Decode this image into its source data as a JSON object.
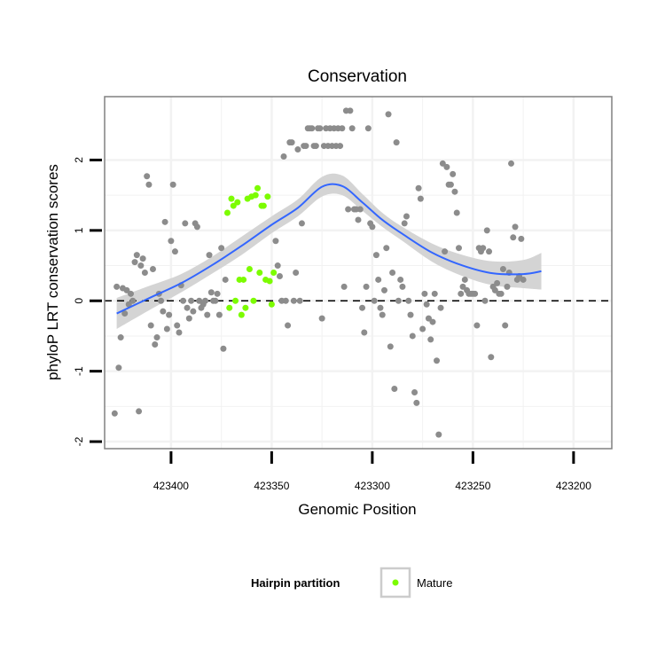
{
  "chart_data": {
    "type": "scatter",
    "title": "Conservation",
    "xlabel": "Genomic Position",
    "ylabel": "phyloP LRT conservation scores",
    "x_reversed": true,
    "xlim": [
      423433,
      423181
    ],
    "ylim": [
      -2.1,
      2.9
    ],
    "x_ticks": [
      423400,
      423350,
      423300,
      423250,
      423200
    ],
    "x_tick_labels": [
      "423400",
      "423350",
      "423300",
      "423250",
      "423200"
    ],
    "y_ticks": [
      -2,
      -1,
      0,
      1,
      2
    ],
    "y_tick_labels": [
      "-2",
      "-1",
      "0",
      "1",
      "2"
    ],
    "grid": true,
    "reference_line": {
      "y": 0,
      "style": "dashed"
    },
    "legend": {
      "title": "Hairpin partition",
      "position": "bottom",
      "entries": [
        {
          "label": "Mature",
          "color": "#7cfc00"
        }
      ]
    },
    "colors": {
      "points_other": "#8c8c8c",
      "points_mature": "#7cfc00",
      "smooth_line": "#3366ff",
      "ribbon": "#d4d4d4",
      "panel_border": "#808080",
      "grid": "#f2f2f2"
    },
    "series": [
      {
        "name": "",
        "color": "#8c8c8c",
        "points": [
          [
            423428,
            -1.6
          ],
          [
            423427,
            0.2
          ],
          [
            423426,
            -0.95
          ],
          [
            423425,
            -0.52
          ],
          [
            423424,
            0.18
          ],
          [
            423423,
            -0.18
          ],
          [
            423422,
            0.15
          ],
          [
            423421,
            -0.05
          ],
          [
            423420,
            0.1
          ],
          [
            423419,
            0.0
          ],
          [
            423418,
            0.55
          ],
          [
            423417,
            0.65
          ],
          [
            423416,
            -1.57
          ],
          [
            423415,
            0.5
          ],
          [
            423414,
            0.6
          ],
          [
            423413,
            0.4
          ],
          [
            423412,
            1.77
          ],
          [
            423411,
            1.65
          ],
          [
            423410,
            -0.35
          ],
          [
            423409,
            0.45
          ],
          [
            423408,
            -0.62
          ],
          [
            423407,
            -0.52
          ],
          [
            423406,
            0.1
          ],
          [
            423405,
            0.0
          ],
          [
            423404,
            -0.15
          ],
          [
            423403,
            1.12
          ],
          [
            423402,
            -0.4
          ],
          [
            423401,
            -0.2
          ],
          [
            423400,
            0.85
          ],
          [
            423399,
            1.65
          ],
          [
            423398,
            0.7
          ],
          [
            423397,
            -0.35
          ],
          [
            423396,
            -0.45
          ],
          [
            423395,
            0.22
          ],
          [
            423394,
            0.0
          ],
          [
            423393,
            1.1
          ],
          [
            423392,
            -0.1
          ],
          [
            423391,
            -0.25
          ],
          [
            423390,
            0.0
          ],
          [
            423389,
            -0.15
          ],
          [
            423388,
            1.1
          ],
          [
            423387,
            1.05
          ],
          [
            423386,
            0.0
          ],
          [
            423385,
            -0.1
          ],
          [
            423384,
            -0.05
          ],
          [
            423383,
            0.0
          ],
          [
            423382,
            -0.2
          ],
          [
            423381,
            0.65
          ],
          [
            423380,
            0.12
          ],
          [
            423379,
            0.0
          ],
          [
            423378,
            0.0
          ],
          [
            423377,
            0.1
          ],
          [
            423376,
            -0.2
          ],
          [
            423375,
            0.75
          ],
          [
            423374,
            -0.68
          ],
          [
            423373,
            0.3
          ],
          [
            423348,
            0.85
          ],
          [
            423347,
            0.5
          ],
          [
            423346,
            0.35
          ],
          [
            423345,
            0.0
          ],
          [
            423344,
            2.05
          ],
          [
            423343,
            0.0
          ],
          [
            423342,
            -0.35
          ],
          [
            423341,
            2.25
          ],
          [
            423340,
            2.25
          ],
          [
            423339,
            0.0
          ],
          [
            423338,
            0.4
          ],
          [
            423337,
            2.15
          ],
          [
            423336,
            0.0
          ],
          [
            423335,
            1.1
          ],
          [
            423334,
            2.2
          ],
          [
            423333,
            2.2
          ],
          [
            423332,
            2.45
          ],
          [
            423331,
            2.45
          ],
          [
            423330,
            2.45
          ],
          [
            423329,
            2.2
          ],
          [
            423328,
            2.2
          ],
          [
            423327,
            2.45
          ],
          [
            423326,
            2.45
          ],
          [
            423325,
            -0.25
          ],
          [
            423324,
            2.2
          ],
          [
            423323,
            2.45
          ],
          [
            423322,
            2.2
          ],
          [
            423321,
            2.45
          ],
          [
            423320,
            2.2
          ],
          [
            423319,
            2.45
          ],
          [
            423318,
            2.2
          ],
          [
            423317,
            2.45
          ],
          [
            423316,
            2.2
          ],
          [
            423315,
            2.45
          ],
          [
            423314,
            0.2
          ],
          [
            423313,
            2.7
          ],
          [
            423312,
            1.3
          ],
          [
            423311,
            2.7
          ],
          [
            423310,
            2.45
          ],
          [
            423309,
            1.3
          ],
          [
            423308,
            1.3
          ],
          [
            423307,
            1.15
          ],
          [
            423306,
            1.3
          ],
          [
            423305,
            -0.1
          ],
          [
            423304,
            -0.45
          ],
          [
            423303,
            0.2
          ],
          [
            423302,
            2.45
          ],
          [
            423301,
            1.1
          ],
          [
            423300,
            1.05
          ],
          [
            423299,
            0.0
          ],
          [
            423298,
            0.65
          ],
          [
            423297,
            0.3
          ],
          [
            423296,
            -0.1
          ],
          [
            423295,
            -0.2
          ],
          [
            423294,
            0.15
          ],
          [
            423293,
            0.75
          ],
          [
            423292,
            2.65
          ],
          [
            423291,
            -0.65
          ],
          [
            423290,
            0.4
          ],
          [
            423289,
            -1.25
          ],
          [
            423288,
            2.25
          ],
          [
            423287,
            0.0
          ],
          [
            423286,
            0.3
          ],
          [
            423285,
            0.2
          ],
          [
            423284,
            1.1
          ],
          [
            423283,
            1.2
          ],
          [
            423282,
            0.0
          ],
          [
            423281,
            -0.2
          ],
          [
            423280,
            -0.5
          ],
          [
            423279,
            -1.3
          ],
          [
            423278,
            -1.45
          ],
          [
            423277,
            1.6
          ],
          [
            423276,
            1.45
          ],
          [
            423275,
            -0.4
          ],
          [
            423274,
            0.1
          ],
          [
            423273,
            -0.05
          ],
          [
            423272,
            -0.25
          ],
          [
            423271,
            -0.55
          ],
          [
            423270,
            -0.3
          ],
          [
            423269,
            0.1
          ],
          [
            423268,
            -0.85
          ],
          [
            423267,
            -1.9
          ],
          [
            423266,
            -0.1
          ],
          [
            423265,
            1.95
          ],
          [
            423264,
            0.7
          ],
          [
            423263,
            1.9
          ],
          [
            423262,
            1.65
          ],
          [
            423261,
            1.65
          ],
          [
            423260,
            1.8
          ],
          [
            423259,
            1.55
          ],
          [
            423258,
            1.25
          ],
          [
            423257,
            0.75
          ],
          [
            423256,
            0.1
          ],
          [
            423255,
            0.2
          ],
          [
            423254,
            0.3
          ],
          [
            423253,
            0.15
          ],
          [
            423252,
            0.1
          ],
          [
            423251,
            0.1
          ],
          [
            423250,
            0.1
          ],
          [
            423249,
            0.1
          ],
          [
            423248,
            -0.35
          ],
          [
            423247,
            0.75
          ],
          [
            423246,
            0.7
          ],
          [
            423245,
            0.75
          ],
          [
            423244,
            0.0
          ],
          [
            423243,
            1.0
          ],
          [
            423242,
            0.7
          ],
          [
            423241,
            -0.8
          ],
          [
            423240,
            0.2
          ],
          [
            423239,
            0.15
          ],
          [
            423238,
            0.25
          ],
          [
            423237,
            0.1
          ],
          [
            423236,
            0.1
          ],
          [
            423235,
            0.45
          ],
          [
            423234,
            -0.35
          ],
          [
            423233,
            0.2
          ],
          [
            423232,
            0.4
          ],
          [
            423231,
            1.95
          ],
          [
            423230,
            0.9
          ],
          [
            423229,
            1.05
          ],
          [
            423228,
            0.3
          ],
          [
            423227,
            0.35
          ],
          [
            423226,
            0.88
          ],
          [
            423225,
            0.3
          ]
        ]
      },
      {
        "name": "Mature",
        "color": "#7cfc00",
        "points": [
          [
            423372,
            1.25
          ],
          [
            423371,
            -0.1
          ],
          [
            423370,
            1.45
          ],
          [
            423369,
            1.35
          ],
          [
            423368,
            0.0
          ],
          [
            423367,
            1.4
          ],
          [
            423366,
            0.3
          ],
          [
            423365,
            -0.2
          ],
          [
            423364,
            0.3
          ],
          [
            423363,
            -0.1
          ],
          [
            423362,
            1.45
          ],
          [
            423361,
            0.45
          ],
          [
            423360,
            1.48
          ],
          [
            423359,
            0.0
          ],
          [
            423358,
            1.5
          ],
          [
            423357,
            1.6
          ],
          [
            423356,
            0.4
          ],
          [
            423355,
            1.35
          ],
          [
            423354,
            1.35
          ],
          [
            423353,
            0.3
          ],
          [
            423352,
            1.48
          ],
          [
            423351,
            0.28
          ],
          [
            423350,
            -0.05
          ],
          [
            423349,
            0.4
          ]
        ]
      }
    ],
    "smooth": {
      "method": "loess",
      "x": [
        423427,
        423410,
        423395,
        423380,
        423365,
        423350,
        423337,
        423325,
        423315,
        423305,
        423295,
        423285,
        423270,
        423255,
        423240,
        423225,
        423216
      ],
      "y": [
        -0.18,
        0.05,
        0.25,
        0.5,
        0.78,
        1.08,
        1.32,
        1.62,
        1.63,
        1.4,
        1.15,
        0.95,
        0.68,
        0.5,
        0.39,
        0.38,
        0.42
      ],
      "lower": [
        -0.4,
        -0.12,
        0.12,
        0.38,
        0.65,
        0.96,
        1.2,
        1.48,
        1.5,
        1.28,
        1.05,
        0.85,
        0.55,
        0.35,
        0.22,
        0.18,
        0.16
      ],
      "upper": [
        0.04,
        0.22,
        0.38,
        0.62,
        0.91,
        1.2,
        1.44,
        1.76,
        1.78,
        1.52,
        1.25,
        1.05,
        0.81,
        0.65,
        0.56,
        0.58,
        0.68
      ]
    }
  }
}
